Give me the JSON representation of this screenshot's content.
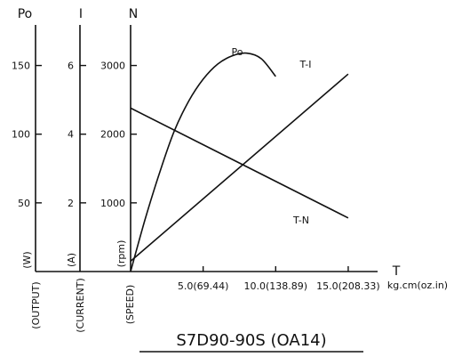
{
  "chart_data": {
    "type": "line",
    "title": "S7D90-90S (OA14)",
    "xlabel": "T",
    "xunit": "kg.cm(oz.in)",
    "xlim": [
      0,
      15.8
    ],
    "x_ticks": [
      {
        "value": 5.0,
        "label": "5.0(69.44)"
      },
      {
        "value": 10.0,
        "label": "10.0(138.89)"
      },
      {
        "value": 15.0,
        "label": "15.0(208.33)"
      }
    ],
    "axes": [
      {
        "key": "po",
        "header": "Po",
        "unit": "(W)",
        "name": "(OUTPUT)",
        "range": [
          0,
          175
        ],
        "ticks": [
          "50",
          "100",
          "150"
        ],
        "tick_values": [
          50,
          100,
          150
        ]
      },
      {
        "key": "i",
        "header": "I",
        "unit": "(A)",
        "name": "(CURRENT)",
        "range": [
          0,
          7
        ],
        "ticks": [
          "2",
          "4",
          "6"
        ],
        "tick_values": [
          2,
          4,
          6
        ]
      },
      {
        "key": "n",
        "header": "N",
        "unit": "(rpm)",
        "name": "(SPEED)",
        "range": [
          0,
          3500
        ],
        "ticks": [
          "1000",
          "2000",
          "3000"
        ],
        "tick_values": [
          1000,
          2000,
          3000
        ]
      }
    ],
    "series": [
      {
        "name": "Po",
        "axis": "po",
        "x": [
          0,
          1,
          2,
          3,
          4,
          5,
          6,
          7,
          8,
          9,
          10
        ],
        "y": [
          0,
          38,
          72,
          102,
          124,
          140,
          151,
          157,
          159,
          155,
          142
        ]
      },
      {
        "name": "T-I",
        "axis": "i",
        "x": [
          0,
          15.0
        ],
        "y": [
          0.3,
          5.75
        ]
      },
      {
        "name": "T-N",
        "axis": "n",
        "x": [
          0,
          15.0
        ],
        "y": [
          2380,
          780
        ]
      }
    ]
  }
}
